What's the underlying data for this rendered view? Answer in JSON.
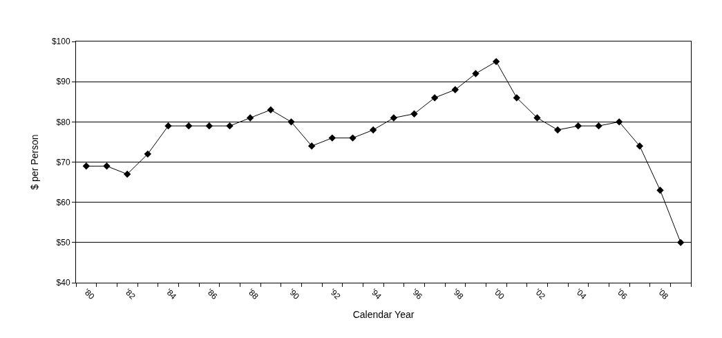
{
  "chart_data": {
    "type": "line",
    "xlabel": "Calendar Year",
    "ylabel": "$ per Person",
    "categories": [
      "'80",
      null,
      "'82",
      null,
      "'84",
      null,
      "'86",
      null,
      "'88",
      null,
      "'90",
      null,
      "'92",
      null,
      "'94",
      null,
      "'96",
      null,
      "'98",
      null,
      "'00",
      null,
      "'02",
      null,
      "'04",
      null,
      "'06",
      null,
      "'08",
      null
    ],
    "series": [
      {
        "color": "#000000",
        "values": [
          69,
          69,
          67,
          72,
          79,
          79,
          79,
          79,
          81,
          83,
          80,
          74,
          76,
          76,
          78,
          81,
          82,
          86,
          88,
          92,
          95,
          86,
          81,
          78,
          79,
          79,
          80,
          74,
          63,
          50
        ]
      }
    ],
    "ylim": [
      40,
      100
    ],
    "yticks": [
      {
        "value": 40,
        "label": "$40"
      },
      {
        "value": 50,
        "label": "$50"
      },
      {
        "value": 60,
        "label": "$60"
      },
      {
        "value": 70,
        "label": "$70"
      },
      {
        "value": 80,
        "label": "$80"
      },
      {
        "value": 90,
        "label": "$90"
      },
      {
        "value": 100,
        "label": "$100"
      }
    ],
    "grid": "y",
    "marker": "diamond",
    "line_style": "solid",
    "legend": false
  }
}
